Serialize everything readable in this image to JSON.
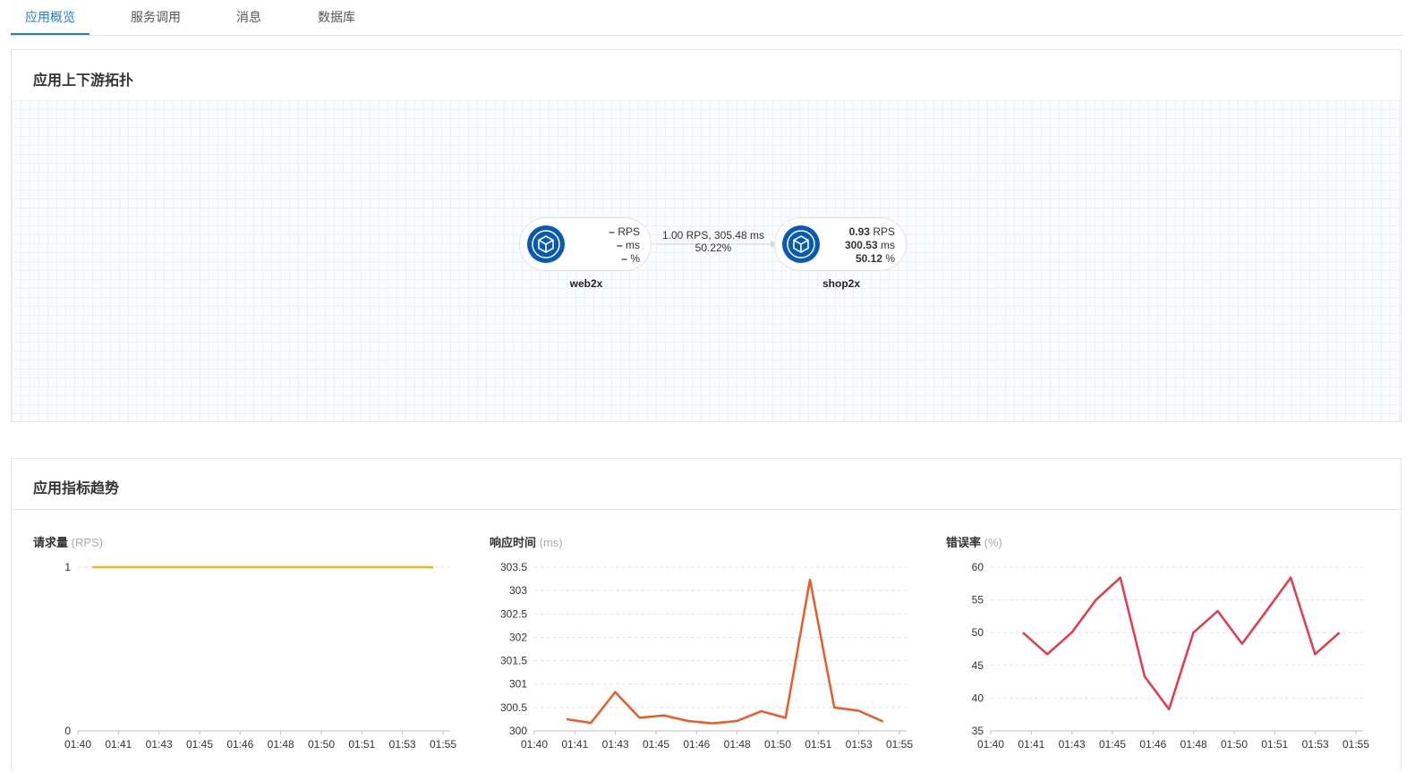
{
  "tabs": [
    {
      "label": "应用概览",
      "active": true
    },
    {
      "label": "服务调用",
      "active": false
    },
    {
      "label": "消息",
      "active": false
    },
    {
      "label": "数据库",
      "active": false
    }
  ],
  "topology": {
    "title": "应用上下游拓扑",
    "nodes": [
      {
        "name": "web2x",
        "icon": "cube-icon",
        "rps_value": "–",
        "rps_unit": "RPS",
        "ms_value": "–",
        "ms_unit": "ms",
        "pct_value": "–",
        "pct_unit": "%"
      },
      {
        "name": "shop2x",
        "icon": "cube-icon",
        "rps_value": "0.93",
        "rps_unit": "RPS",
        "ms_value": "300.53",
        "ms_unit": "ms",
        "pct_value": "50.12",
        "pct_unit": "%"
      }
    ],
    "edge": {
      "line1": "1.00 RPS, 305.48 ms",
      "line2": "50.22%"
    }
  },
  "trends": {
    "title": "应用指标趋势",
    "charts": [
      {
        "title": "请求量",
        "unit": "(RPS)"
      },
      {
        "title": "响应时间",
        "unit": "(ms)"
      },
      {
        "title": "错误率",
        "unit": "(%)"
      }
    ]
  },
  "chart_data": [
    {
      "type": "line",
      "title": "请求量 (RPS)",
      "color": "#f5b31e",
      "x_ticks": [
        "01:40",
        "01:41",
        "01:43",
        "01:45",
        "01:46",
        "01:48",
        "01:50",
        "01:51",
        "01:53",
        "01:55"
      ],
      "y_ticks": [
        "0",
        "1"
      ],
      "ylim": [
        0,
        1
      ],
      "grid": true,
      "series": [
        {
          "x": [
            "01:40:36",
            "01:54:36"
          ],
          "values": [
            1,
            1
          ]
        }
      ]
    },
    {
      "type": "line",
      "title": "响应时间 (ms)",
      "color": "#ee5a24",
      "x_ticks": [
        "01:40",
        "01:41",
        "01:43",
        "01:45",
        "01:46",
        "01:48",
        "01:50",
        "01:51",
        "01:53",
        "01:55"
      ],
      "y_ticks": [
        "300",
        "300.5",
        "301",
        "301.5",
        "302",
        "302.5",
        "303",
        "303.5"
      ],
      "ylim": [
        300,
        303.5
      ],
      "grid": true,
      "series": [
        {
          "values": [
            300.25,
            300.17,
            300.83,
            300.28,
            300.33,
            300.21,
            300.16,
            300.21,
            300.42,
            300.28,
            303.23,
            300.5,
            300.43,
            300.2
          ]
        }
      ]
    },
    {
      "type": "line",
      "title": "错误率 (%)",
      "color": "#e8394b",
      "x_ticks": [
        "01:40",
        "01:41",
        "01:43",
        "01:45",
        "01:46",
        "01:48",
        "01:50",
        "01:51",
        "01:53",
        "01:55"
      ],
      "y_ticks": [
        "35",
        "40",
        "45",
        "50",
        "55",
        "60"
      ],
      "ylim": [
        35,
        60
      ],
      "grid": true,
      "series": [
        {
          "values": [
            50,
            46.7,
            50,
            55,
            58.4,
            43.3,
            38.3,
            50,
            53.3,
            48.3,
            53.3,
            58.4,
            46.7,
            50
          ]
        }
      ]
    }
  ]
}
